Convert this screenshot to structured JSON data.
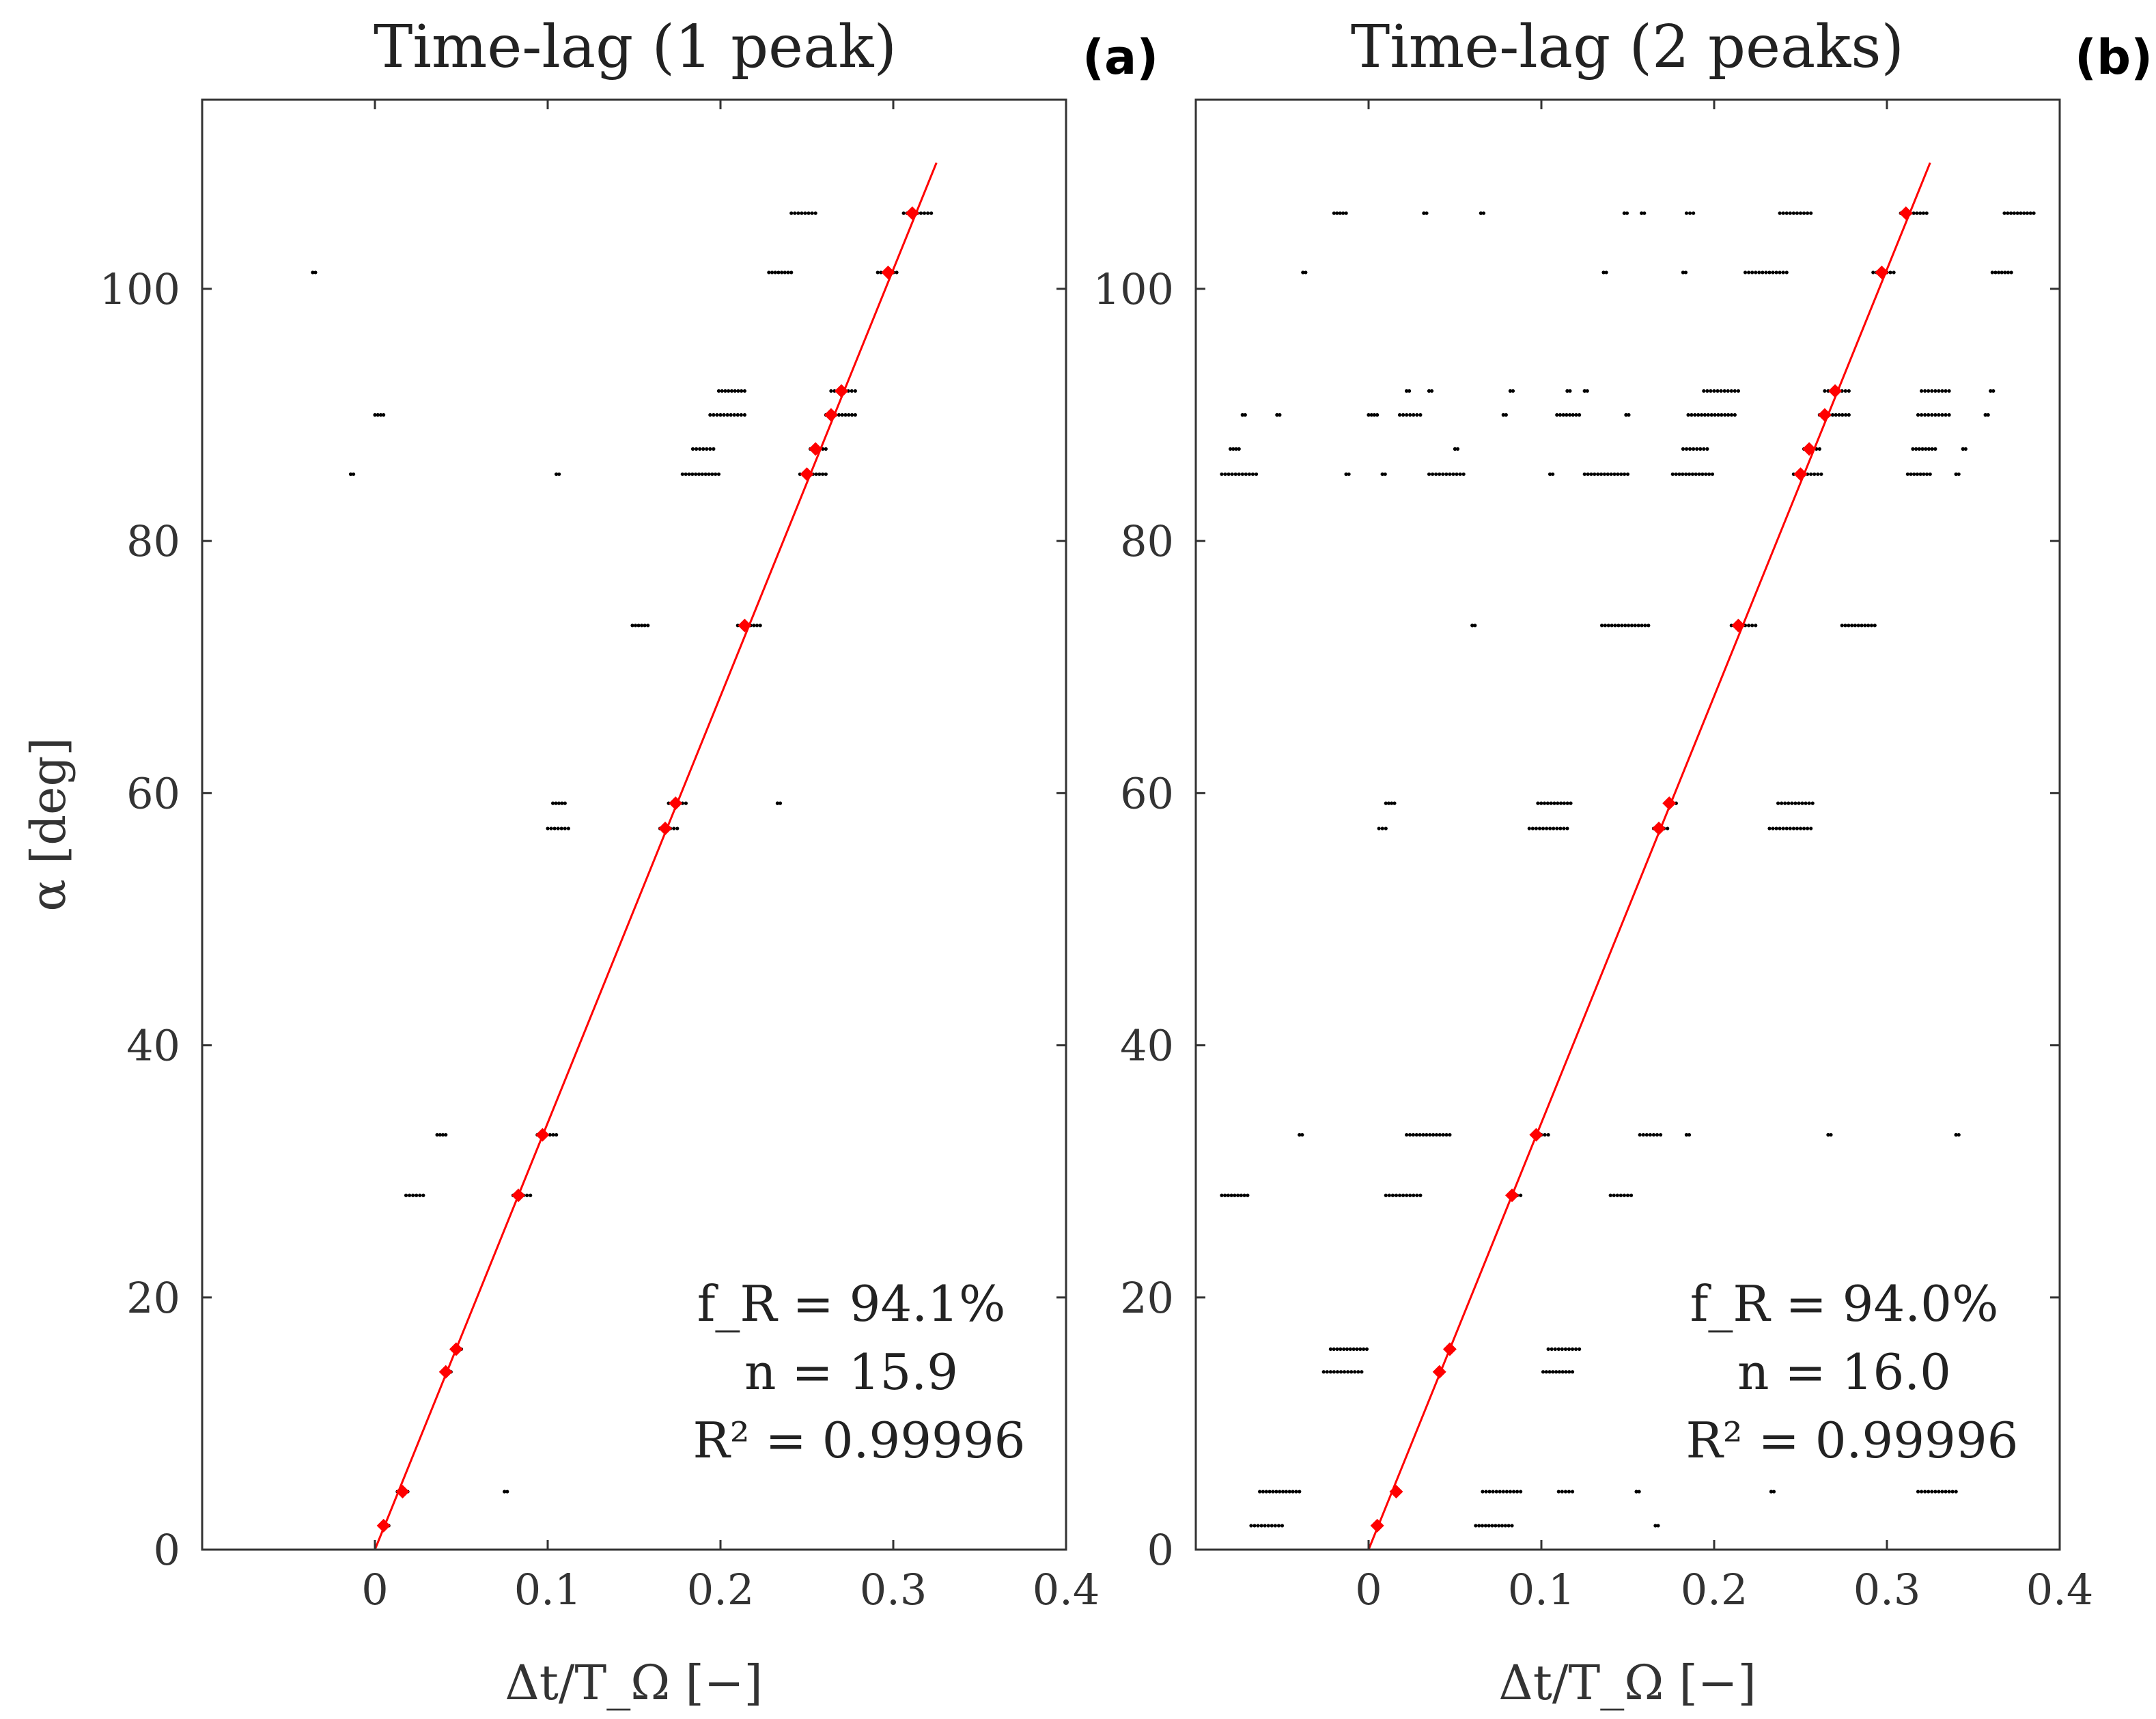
{
  "chart_data": [
    {
      "type": "scatter",
      "title": "Time-lag (1 peak)",
      "panel_label": "(a)",
      "xlabel": "Δt/T_Ω [−]",
      "ylabel": "α [deg]",
      "xlim": [
        -0.1,
        0.4
      ],
      "ylim": [
        0,
        115
      ],
      "xticks": [
        0,
        0.1,
        0.2,
        0.3,
        0.4
      ],
      "xtick_labels": [
        "0",
        "0.1",
        "0.2",
        "0.3",
        "0.4"
      ],
      "yticks": [
        0,
        20,
        40,
        60,
        80,
        100
      ],
      "ytick_labels": [
        "0",
        "20",
        "40",
        "60",
        "80",
        "100"
      ],
      "grid": false,
      "annotation_lines": [
        "f_R = 94.1%",
        "n = 15.9",
        "R² = 0.99996"
      ],
      "fit_line": {
        "color": "#ff0000",
        "x": [
          0.0,
          0.325
        ],
        "y": [
          0,
          110
        ]
      },
      "series": [
        {
          "color": "#000000",
          "marker": "dot",
          "clusters": [
            {
              "x": 0.003,
              "x_end": 0.008,
              "y": 1.9
            },
            {
              "x": 0.013,
              "x_end": 0.019,
              "y": 4.6
            },
            {
              "x": 0.075,
              "x_end": 0.075,
              "y": 4.6
            },
            {
              "x": 0.04,
              "x_end": 0.044,
              "y": 14.1
            },
            {
              "x": 0.045,
              "x_end": 0.05,
              "y": 15.9
            },
            {
              "x": 0.018,
              "x_end": 0.028,
              "y": 28.1
            },
            {
              "x": 0.08,
              "x_end": 0.09,
              "y": 28.1
            },
            {
              "x": 0.036,
              "x_end": 0.041,
              "y": 32.9
            },
            {
              "x": 0.094,
              "x_end": 0.105,
              "y": 32.9
            },
            {
              "x": 0.1,
              "x_end": 0.112,
              "y": 57.2
            },
            {
              "x": 0.165,
              "x_end": 0.175,
              "y": 57.2
            },
            {
              "x": 0.103,
              "x_end": 0.11,
              "y": 59.2
            },
            {
              "x": 0.17,
              "x_end": 0.18,
              "y": 59.2
            },
            {
              "x": 0.233,
              "x_end": 0.233,
              "y": 59.2
            },
            {
              "x": 0.149,
              "x_end": 0.158,
              "y": 73.3
            },
            {
              "x": 0.21,
              "x_end": 0.223,
              "y": 73.3
            },
            {
              "x": -0.014,
              "x_end": -0.014,
              "y": 85.3
            },
            {
              "x": 0.105,
              "x_end": 0.105,
              "y": 85.3
            },
            {
              "x": 0.178,
              "x_end": 0.199,
              "y": 85.3
            },
            {
              "x": 0.246,
              "x_end": 0.261,
              "y": 85.3
            },
            {
              "x": 0.184,
              "x_end": 0.196,
              "y": 87.3
            },
            {
              "x": 0.252,
              "x_end": 0.261,
              "y": 87.3
            },
            {
              "x": 0.0,
              "x_end": 0.005,
              "y": 90.0
            },
            {
              "x": 0.194,
              "x_end": 0.214,
              "y": 90.0
            },
            {
              "x": 0.261,
              "x_end": 0.278,
              "y": 90.0
            },
            {
              "x": 0.199,
              "x_end": 0.214,
              "y": 91.9
            },
            {
              "x": 0.264,
              "x_end": 0.278,
              "y": 91.9
            },
            {
              "x": -0.036,
              "x_end": -0.036,
              "y": 101.3
            },
            {
              "x": 0.228,
              "x_end": 0.241,
              "y": 101.3
            },
            {
              "x": 0.291,
              "x_end": 0.302,
              "y": 101.3
            },
            {
              "x": 0.241,
              "x_end": 0.255,
              "y": 106.0
            },
            {
              "x": 0.306,
              "x_end": 0.322,
              "y": 106.0
            }
          ]
        },
        {
          "color": "#ff0000",
          "marker": "diamond",
          "x": [
            0.005,
            0.016,
            0.041,
            0.047,
            0.083,
            0.097,
            0.168,
            0.174,
            0.214,
            0.25,
            0.255,
            0.264,
            0.27,
            0.297,
            0.311
          ],
          "y": [
            1.9,
            4.6,
            14.1,
            15.9,
            28.1,
            32.9,
            57.2,
            59.2,
            73.3,
            85.3,
            87.3,
            90.0,
            91.9,
            101.3,
            106.0
          ]
        }
      ]
    },
    {
      "type": "scatter",
      "title": "Time-lag (2 peaks)",
      "panel_label": "(b)",
      "xlabel": "Δt/T_Ω [−]",
      "ylabel": "",
      "xlim": [
        -0.1,
        0.4
      ],
      "ylim": [
        0,
        115
      ],
      "xticks": [
        0,
        0.1,
        0.2,
        0.3,
        0.4
      ],
      "xtick_labels": [
        "0",
        "0.1",
        "0.2",
        "0.3",
        "0.4"
      ],
      "yticks": [
        0,
        20,
        40,
        60,
        80,
        100
      ],
      "ytick_labels": [
        "0",
        "20",
        "40",
        "60",
        "80",
        "100"
      ],
      "grid": false,
      "annotation_lines": [
        "f_R = 94.0%",
        "n = 16.0",
        "R² = 0.99996"
      ],
      "fit_line": {
        "color": "#ff0000",
        "x": [
          0.0,
          0.325
        ],
        "y": [
          0,
          110
        ]
      },
      "series": [
        {
          "color": "#000000",
          "marker": "dot",
          "clusters": [
            {
              "x": -0.068,
              "x_end": -0.05,
              "y": 1.9
            },
            {
              "x": 0.062,
              "x_end": 0.083,
              "y": 1.9
            },
            {
              "x": 0.166,
              "x_end": 0.166,
              "y": 1.9
            },
            {
              "x": -0.063,
              "x_end": -0.04,
              "y": 4.6
            },
            {
              "x": 0.066,
              "x_end": 0.088,
              "y": 4.6
            },
            {
              "x": 0.11,
              "x_end": 0.118,
              "y": 4.6
            },
            {
              "x": 0.155,
              "x_end": 0.155,
              "y": 4.6
            },
            {
              "x": 0.233,
              "x_end": 0.233,
              "y": 4.6
            },
            {
              "x": 0.318,
              "x_end": 0.34,
              "y": 4.6
            },
            {
              "x": -0.026,
              "x_end": -0.004,
              "y": 14.1
            },
            {
              "x": 0.101,
              "x_end": 0.118,
              "y": 14.1
            },
            {
              "x": -0.022,
              "x_end": -0.001,
              "y": 15.9
            },
            {
              "x": 0.104,
              "x_end": 0.122,
              "y": 15.9
            },
            {
              "x": -0.085,
              "x_end": -0.07,
              "y": 28.1
            },
            {
              "x": 0.01,
              "x_end": 0.03,
              "y": 28.1
            },
            {
              "x": 0.082,
              "x_end": 0.088,
              "y": 28.1
            },
            {
              "x": 0.14,
              "x_end": 0.152,
              "y": 28.1
            },
            {
              "x": -0.04,
              "x_end": -0.04,
              "y": 32.9
            },
            {
              "x": 0.022,
              "x_end": 0.047,
              "y": 32.9
            },
            {
              "x": 0.096,
              "x_end": 0.104,
              "y": 32.9
            },
            {
              "x": 0.157,
              "x_end": 0.169,
              "y": 32.9
            },
            {
              "x": 0.184,
              "x_end": 0.184,
              "y": 32.9
            },
            {
              "x": 0.266,
              "x_end": 0.266,
              "y": 32.9
            },
            {
              "x": 0.34,
              "x_end": 0.34,
              "y": 32.9
            },
            {
              "x": 0.006,
              "x_end": 0.01,
              "y": 57.2
            },
            {
              "x": 0.093,
              "x_end": 0.115,
              "y": 57.2
            },
            {
              "x": 0.165,
              "x_end": 0.173,
              "y": 57.2
            },
            {
              "x": 0.232,
              "x_end": 0.256,
              "y": 57.2
            },
            {
              "x": 0.01,
              "x_end": 0.015,
              "y": 59.2
            },
            {
              "x": 0.098,
              "x_end": 0.117,
              "y": 59.2
            },
            {
              "x": 0.172,
              "x_end": 0.178,
              "y": 59.2
            },
            {
              "x": 0.237,
              "x_end": 0.257,
              "y": 59.2
            },
            {
              "x": 0.06,
              "x_end": 0.06,
              "y": 73.3
            },
            {
              "x": 0.135,
              "x_end": 0.162,
              "y": 73.3
            },
            {
              "x": 0.21,
              "x_end": 0.224,
              "y": 73.3
            },
            {
              "x": 0.274,
              "x_end": 0.293,
              "y": 73.3
            },
            {
              "x": -0.085,
              "x_end": -0.065,
              "y": 85.3
            },
            {
              "x": -0.013,
              "x_end": -0.013,
              "y": 85.3
            },
            {
              "x": 0.008,
              "x_end": 0.008,
              "y": 85.3
            },
            {
              "x": 0.035,
              "x_end": 0.055,
              "y": 85.3
            },
            {
              "x": 0.105,
              "x_end": 0.105,
              "y": 85.3
            },
            {
              "x": 0.125,
              "x_end": 0.15,
              "y": 85.3
            },
            {
              "x": 0.176,
              "x_end": 0.199,
              "y": 85.3
            },
            {
              "x": 0.246,
              "x_end": 0.262,
              "y": 85.3
            },
            {
              "x": 0.312,
              "x_end": 0.325,
              "y": 85.3
            },
            {
              "x": 0.34,
              "x_end": 0.34,
              "y": 85.3
            },
            {
              "x": -0.08,
              "x_end": -0.075,
              "y": 87.3
            },
            {
              "x": 0.05,
              "x_end": 0.05,
              "y": 87.3
            },
            {
              "x": 0.182,
              "x_end": 0.196,
              "y": 87.3
            },
            {
              "x": 0.252,
              "x_end": 0.261,
              "y": 87.3
            },
            {
              "x": 0.315,
              "x_end": 0.328,
              "y": 87.3
            },
            {
              "x": 0.344,
              "x_end": 0.344,
              "y": 87.3
            },
            {
              "x": -0.073,
              "x_end": -0.073,
              "y": 90.0
            },
            {
              "x": -0.053,
              "x_end": -0.053,
              "y": 90.0
            },
            {
              "x": 0.0,
              "x_end": 0.005,
              "y": 90.0
            },
            {
              "x": 0.018,
              "x_end": 0.03,
              "y": 90.0
            },
            {
              "x": 0.078,
              "x_end": 0.078,
              "y": 90.0
            },
            {
              "x": 0.109,
              "x_end": 0.122,
              "y": 90.0
            },
            {
              "x": 0.149,
              "x_end": 0.149,
              "y": 90.0
            },
            {
              "x": 0.185,
              "x_end": 0.212,
              "y": 90.0
            },
            {
              "x": 0.261,
              "x_end": 0.278,
              "y": 90.0
            },
            {
              "x": 0.318,
              "x_end": 0.336,
              "y": 90.0
            },
            {
              "x": 0.357,
              "x_end": 0.357,
              "y": 90.0
            },
            {
              "x": 0.022,
              "x_end": 0.022,
              "y": 91.9
            },
            {
              "x": 0.035,
              "x_end": 0.035,
              "y": 91.9
            },
            {
              "x": 0.082,
              "x_end": 0.082,
              "y": 91.9
            },
            {
              "x": 0.115,
              "x_end": 0.115,
              "y": 91.9
            },
            {
              "x": 0.125,
              "x_end": 0.125,
              "y": 91.9
            },
            {
              "x": 0.194,
              "x_end": 0.214,
              "y": 91.9
            },
            {
              "x": 0.264,
              "x_end": 0.278,
              "y": 91.9
            },
            {
              "x": 0.32,
              "x_end": 0.336,
              "y": 91.9
            },
            {
              "x": 0.36,
              "x_end": 0.36,
              "y": 91.9
            },
            {
              "x": -0.038,
              "x_end": -0.038,
              "y": 101.3
            },
            {
              "x": 0.136,
              "x_end": 0.136,
              "y": 101.3
            },
            {
              "x": 0.182,
              "x_end": 0.182,
              "y": 101.3
            },
            {
              "x": 0.218,
              "x_end": 0.242,
              "y": 101.3
            },
            {
              "x": 0.292,
              "x_end": 0.304,
              "y": 101.3
            },
            {
              "x": 0.361,
              "x_end": 0.372,
              "y": 101.3
            },
            {
              "x": -0.02,
              "x_end": -0.013,
              "y": 106.0
            },
            {
              "x": 0.032,
              "x_end": 0.032,
              "y": 106.0
            },
            {
              "x": 0.065,
              "x_end": 0.065,
              "y": 106.0
            },
            {
              "x": 0.148,
              "x_end": 0.148,
              "y": 106.0
            },
            {
              "x": 0.158,
              "x_end": 0.158,
              "y": 106.0
            },
            {
              "x": 0.184,
              "x_end": 0.188,
              "y": 106.0
            },
            {
              "x": 0.238,
              "x_end": 0.256,
              "y": 106.0
            },
            {
              "x": 0.308,
              "x_end": 0.323,
              "y": 106.0
            },
            {
              "x": 0.368,
              "x_end": 0.385,
              "y": 106.0
            }
          ]
        },
        {
          "color": "#ff0000",
          "marker": "diamond",
          "x": [
            0.005,
            0.016,
            0.041,
            0.047,
            0.083,
            0.097,
            0.168,
            0.174,
            0.214,
            0.25,
            0.255,
            0.264,
            0.27,
            0.297,
            0.311
          ],
          "y": [
            1.9,
            4.6,
            14.1,
            15.9,
            28.1,
            32.9,
            57.2,
            59.2,
            73.3,
            85.3,
            87.3,
            90.0,
            91.9,
            101.3,
            106.0
          ]
        }
      ]
    }
  ]
}
